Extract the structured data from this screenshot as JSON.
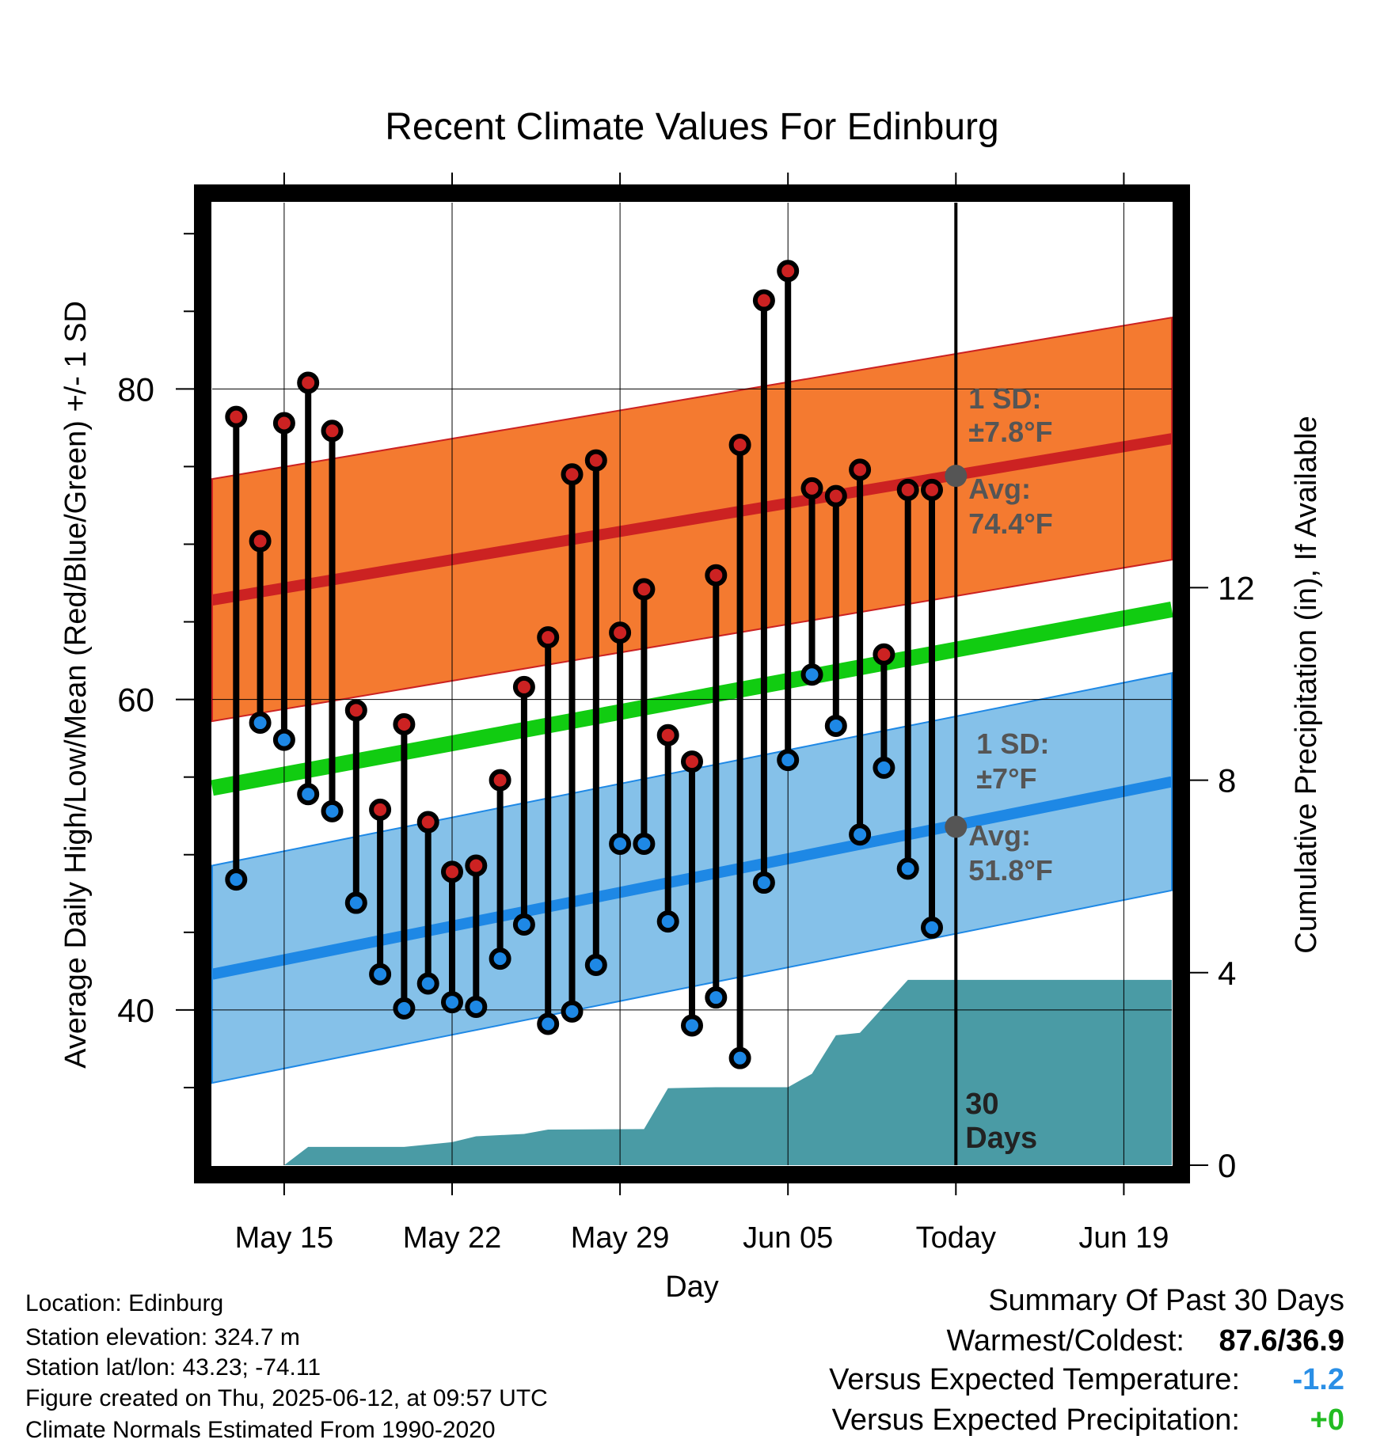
{
  "chart_data": {
    "type": "line",
    "title": "Recent Climate Values For Edinburg",
    "xlabel": "Day",
    "ylabel": "Average Daily High/Low/Mean (Red/Blue/Green) +/- 1 SD",
    "y2label": "Cumulative Precipitation (in), If Available",
    "xlim": [
      "2025-05-12",
      "2025-06-21"
    ],
    "ylim": [
      30,
      92
    ],
    "y2lim": [
      0,
      20
    ],
    "x_ticks": [
      "2025-05-15",
      "2025-05-22",
      "2025-05-29",
      "2025-06-05",
      "2025-06-12",
      "2025-06-19"
    ],
    "x_tick_labels": [
      "May 15",
      "May 22",
      "May 29",
      "Jun 05",
      "Today",
      "Jun 19"
    ],
    "y_ticks": [
      40,
      60,
      80
    ],
    "y2_ticks": [
      0,
      4,
      8,
      12
    ],
    "grid": true,
    "today": "2025-06-12",
    "today_label": "30\nDays",
    "normals": {
      "dates": [
        "2025-05-12",
        "2025-06-21"
      ],
      "high_avg": [
        66.4,
        76.8
      ],
      "high_sd": 7.8,
      "low_avg": [
        42.3,
        54.7
      ],
      "low_sd": 7.0,
      "mean_avg": [
        54.3,
        65.8
      ]
    },
    "annotations": {
      "high_sd_label": "1 SD:",
      "high_sd_value": "±7.8°F",
      "high_avg_label": "Avg:",
      "high_avg_value": "74.4°F",
      "high_avg_today": 74.4,
      "low_sd_label": "1 SD:",
      "low_sd_value": "±7°F",
      "low_avg_label": "Avg:",
      "low_avg_value": "51.8°F",
      "low_avg_today": 51.8
    },
    "series": [
      {
        "name": "High",
        "color": "#cc2222",
        "dates": [
          "2025-05-13",
          "2025-05-14",
          "2025-05-15",
          "2025-05-16",
          "2025-05-17",
          "2025-05-18",
          "2025-05-19",
          "2025-05-20",
          "2025-05-21",
          "2025-05-22",
          "2025-05-23",
          "2025-05-24",
          "2025-05-25",
          "2025-05-26",
          "2025-05-27",
          "2025-05-28",
          "2025-05-29",
          "2025-05-30",
          "2025-05-31",
          "2025-06-01",
          "2025-06-02",
          "2025-06-03",
          "2025-06-04",
          "2025-06-05",
          "2025-06-06",
          "2025-06-07",
          "2025-06-08",
          "2025-06-09",
          "2025-06-10",
          "2025-06-11"
        ],
        "values": [
          78.2,
          70.2,
          77.8,
          80.4,
          77.3,
          59.3,
          52.9,
          58.4,
          52.1,
          48.9,
          49.3,
          54.8,
          60.8,
          64.0,
          74.5,
          75.4,
          64.3,
          67.1,
          57.7,
          56.0,
          68.0,
          76.4,
          85.7,
          87.6,
          73.6,
          73.1,
          74.8,
          62.9,
          73.5,
          73.5
        ]
      },
      {
        "name": "Low",
        "color": "#1e88e5",
        "dates": [
          "2025-05-13",
          "2025-05-14",
          "2025-05-15",
          "2025-05-16",
          "2025-05-17",
          "2025-05-18",
          "2025-05-19",
          "2025-05-20",
          "2025-05-21",
          "2025-05-22",
          "2025-05-23",
          "2025-05-24",
          "2025-05-25",
          "2025-05-26",
          "2025-05-27",
          "2025-05-28",
          "2025-05-29",
          "2025-05-30",
          "2025-05-31",
          "2025-06-01",
          "2025-06-02",
          "2025-06-03",
          "2025-06-04",
          "2025-06-05",
          "2025-06-06",
          "2025-06-07",
          "2025-06-08",
          "2025-06-09",
          "2025-06-10",
          "2025-06-11"
        ],
        "values": [
          48.4,
          58.5,
          57.4,
          53.9,
          52.8,
          46.9,
          42.3,
          40.1,
          41.7,
          40.5,
          40.2,
          43.3,
          45.5,
          39.1,
          39.9,
          42.9,
          50.7,
          50.7,
          45.7,
          39.0,
          40.8,
          36.9,
          48.2,
          56.1,
          61.6,
          58.3,
          51.3,
          55.6,
          49.1,
          45.3
        ]
      },
      {
        "name": "Precipitation",
        "color": "#4a9ba5",
        "dates": [
          "2025-05-12",
          "2025-05-15",
          "2025-05-16",
          "2025-05-17",
          "2025-05-20",
          "2025-05-22",
          "2025-05-23",
          "2025-05-25",
          "2025-05-26",
          "2025-05-30",
          "2025-05-31",
          "2025-06-02",
          "2025-06-05",
          "2025-06-06",
          "2025-06-07",
          "2025-06-08",
          "2025-06-09",
          "2025-06-10",
          "2025-06-21"
        ],
        "values": [
          0,
          0,
          0.38,
          0.38,
          0.38,
          0.48,
          0.6,
          0.65,
          0.74,
          0.75,
          1.6,
          1.62,
          1.62,
          1.9,
          2.7,
          2.75,
          3.3,
          3.85,
          3.85
        ]
      }
    ]
  },
  "footer": {
    "location": "Location: Edinburg",
    "elevation": "Station elevation: 324.7 m",
    "latlon": "Station lat/lon: 43.23; -74.11",
    "created": "Figure created on Thu, 2025-06-12, at 09:57 UTC",
    "normals_source": "Climate Normals Estimated From 1990-2020"
  },
  "summary": {
    "title": "Summary Of Past 30 Days",
    "warmest_label": "Warmest/Coldest:",
    "warmest_value": "87.6/36.9",
    "temp_label": "Versus Expected Temperature:",
    "temp_value": "-1.2",
    "precip_label": "Versus Expected Precipitation:",
    "precip_value": "+0"
  },
  "colors": {
    "high_band": "#f47a30",
    "high_line": "#cc2222",
    "low_band": "#85c1e9",
    "low_line": "#1e88e5",
    "mean_line": "#11cc11",
    "precip": "#4a9ba5",
    "temp_delta": "#2a8fe6",
    "precip_delta": "#22bb22"
  }
}
